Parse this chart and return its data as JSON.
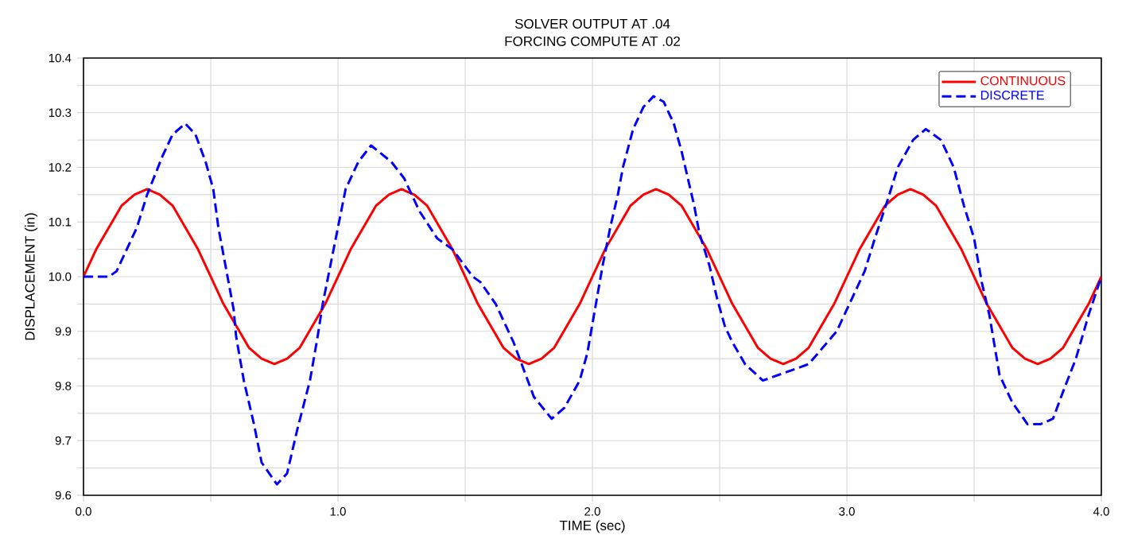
{
  "chart_data": {
    "type": "line",
    "title": "SOLVER OUTPUT AT .04",
    "subtitle": "FORCING COMPUTE AT .02",
    "xlabel": "TIME  (sec)",
    "ylabel": "DISPLACEMENT (in)",
    "xlim": [
      0,
      4
    ],
    "ylim": [
      9.6,
      10.4
    ],
    "xticks": [
      {
        "value": 0,
        "label": "0.0"
      },
      {
        "value": 0.5,
        "label": null
      },
      {
        "value": 1,
        "label": "1.0"
      },
      {
        "value": 1.5,
        "label": null
      },
      {
        "value": 2,
        "label": "2.0"
      },
      {
        "value": 2.5,
        "label": null
      },
      {
        "value": 3,
        "label": "3.0"
      },
      {
        "value": 3.5,
        "label": null
      },
      {
        "value": 4,
        "label": "4.0"
      }
    ],
    "yticks": [
      9.6,
      {
        "value": 9.65,
        "label": null
      },
      9.7,
      {
        "value": 9.75,
        "label": null
      },
      9.8,
      {
        "value": 9.85,
        "label": null
      },
      9.9,
      {
        "value": 9.95,
        "label": null
      },
      {
        "value": 10,
        "label": "10.0"
      },
      {
        "value": 10.05,
        "label": null
      },
      10.1,
      {
        "value": 10.15,
        "label": null
      },
      10.2,
      {
        "value": 10.25,
        "label": null
      },
      10.3,
      {
        "value": 10.35,
        "label": null
      },
      10.4
    ],
    "grid": true,
    "legend": "top right",
    "series": [
      {
        "name": "CONTINUOUS",
        "color": "#ff0000",
        "line_style": "solid",
        "x": [
          0,
          0.05,
          0.1,
          0.15,
          0.2,
          0.25,
          0.3,
          0.35,
          0.4,
          0.45,
          0.5,
          0.55,
          0.6,
          0.65,
          0.7,
          0.75,
          0.8,
          0.85,
          0.9,
          0.95,
          1,
          1.05,
          1.1,
          1.15,
          1.2,
          1.25,
          1.3,
          1.35,
          1.4,
          1.45,
          1.5,
          1.55,
          1.6,
          1.65,
          1.7,
          1.75,
          1.8,
          1.85,
          1.9,
          1.95,
          2,
          2.05,
          2.1,
          2.15,
          2.2,
          2.25,
          2.3,
          2.35,
          2.4,
          2.45,
          2.5,
          2.55,
          2.6,
          2.65,
          2.7,
          2.75,
          2.8,
          2.85,
          2.9,
          2.95,
          3,
          3.05,
          3.1,
          3.15,
          3.2,
          3.25,
          3.3,
          3.35,
          3.4,
          3.45,
          3.5,
          3.55,
          3.6,
          3.65,
          3.7,
          3.75,
          3.8,
          3.85,
          3.9,
          3.95,
          4
        ],
        "values": [
          10.0,
          10.05,
          10.09,
          10.13,
          10.15,
          10.16,
          10.15,
          10.13,
          10.09,
          10.05,
          10.0,
          9.95,
          9.91,
          9.87,
          9.85,
          9.84,
          9.85,
          9.87,
          9.91,
          9.95,
          10.0,
          10.05,
          10.09,
          10.13,
          10.15,
          10.16,
          10.15,
          10.13,
          10.09,
          10.05,
          10.0,
          9.95,
          9.91,
          9.87,
          9.85,
          9.84,
          9.85,
          9.87,
          9.91,
          9.95,
          10.0,
          10.05,
          10.09,
          10.13,
          10.15,
          10.16,
          10.15,
          10.13,
          10.09,
          10.05,
          10.0,
          9.95,
          9.91,
          9.87,
          9.85,
          9.84,
          9.85,
          9.87,
          9.91,
          9.95,
          10.0,
          10.05,
          10.09,
          10.13,
          10.15,
          10.16,
          10.15,
          10.13,
          10.09,
          10.05,
          10.0,
          9.95,
          9.91,
          9.87,
          9.85,
          9.84,
          9.85,
          9.87,
          9.91,
          9.95,
          10.0
        ]
      },
      {
        "name": "DISCRETE",
        "color": "#0000ff",
        "line_style": "dashed",
        "x": [
          0,
          0.1,
          0.13,
          0.16,
          0.21,
          0.25,
          0.31,
          0.35,
          0.4,
          0.44,
          0.48,
          0.51,
          0.53,
          0.55,
          0.57,
          0.59,
          0.6,
          0.63,
          0.67,
          0.7,
          0.76,
          0.8,
          0.84,
          0.89,
          0.92,
          0.94,
          0.97,
          1.0,
          1.03,
          1.08,
          1.13,
          1.21,
          1.26,
          1.32,
          1.39,
          1.45,
          1.53,
          1.56,
          1.62,
          1.66,
          1.69,
          1.73,
          1.77,
          1.84,
          1.89,
          1.95,
          1.98,
          2.01,
          2.04,
          2.07,
          2.1,
          2.12,
          2.16,
          2.2,
          2.24,
          2.28,
          2.32,
          2.35,
          2.37,
          2.4,
          2.42,
          2.46,
          2.49,
          2.52,
          2.55,
          2.6,
          2.67,
          2.73,
          2.85,
          2.96,
          3.01,
          3.07,
          3.11,
          3.16,
          3.2,
          3.26,
          3.31,
          3.37,
          3.42,
          3.46,
          3.5,
          3.53,
          3.56,
          3.6,
          3.65,
          3.71,
          3.76,
          3.81,
          3.85,
          3.9,
          3.95,
          4.0
        ],
        "values": [
          10.0,
          10.0,
          10.01,
          10.04,
          10.09,
          10.15,
          10.22,
          10.26,
          10.28,
          10.26,
          10.21,
          10.16,
          10.09,
          10.04,
          9.99,
          9.94,
          9.89,
          9.81,
          9.73,
          9.66,
          9.62,
          9.64,
          9.72,
          9.81,
          9.89,
          9.95,
          10.02,
          10.09,
          10.16,
          10.21,
          10.24,
          10.21,
          10.18,
          10.12,
          10.07,
          10.05,
          10.0,
          9.99,
          9.95,
          9.91,
          9.88,
          9.83,
          9.78,
          9.74,
          9.76,
          9.81,
          9.86,
          9.94,
          10.02,
          10.09,
          10.15,
          10.2,
          10.27,
          10.31,
          10.33,
          10.32,
          10.28,
          10.23,
          10.19,
          10.13,
          10.08,
          10.02,
          9.96,
          9.91,
          9.88,
          9.84,
          9.81,
          9.82,
          9.84,
          9.9,
          9.95,
          10.01,
          10.07,
          10.14,
          10.2,
          10.25,
          10.27,
          10.25,
          10.2,
          10.13,
          10.07,
          9.99,
          9.93,
          9.82,
          9.77,
          9.73,
          9.73,
          9.74,
          9.79,
          9.85,
          9.93,
          10.0
        ]
      }
    ]
  }
}
